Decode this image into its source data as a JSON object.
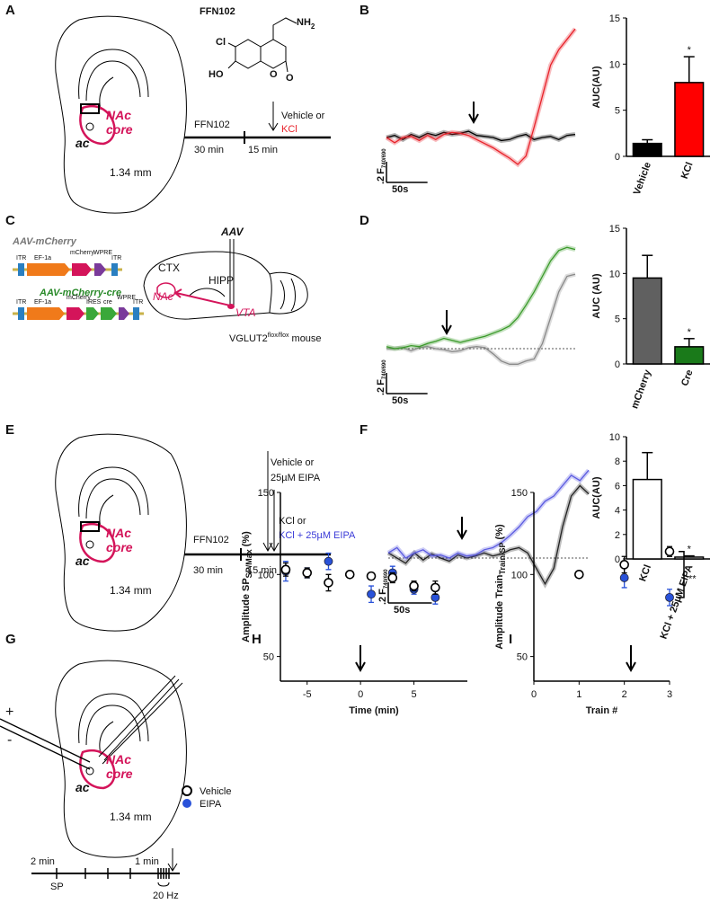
{
  "panel_labels": [
    "A",
    "B",
    "C",
    "D",
    "E",
    "F",
    "G",
    "H",
    "I"
  ],
  "panel_a": {
    "compound": "FFN102",
    "amine": "NH",
    "amine_sub": "2",
    "chlorine": "Cl",
    "hydroxyl": "HO",
    "ring_o": "O",
    "keto_o": "O",
    "region_1": "NAc",
    "region_2": "core",
    "ac": "ac",
    "level": "1.34 mm",
    "drug": "FFN102",
    "t1": "30 min",
    "t2": "15 min",
    "treat": "Vehicle or",
    "kcl": "KCl"
  },
  "panel_c": {
    "vector_1": "AAV-mCherry",
    "v1_parts": [
      "ITR",
      "EF-1a",
      "mCherry",
      "WPRE",
      "ITR"
    ],
    "vector_2": "AAV-mCherry-cre",
    "v2_parts": [
      "ITR",
      "EF-1a",
      "mCherry",
      "IRES",
      "cre",
      "WPRE",
      "ITR"
    ],
    "aav": "AAV",
    "ctx": "CTX",
    "hipp": "HIPP",
    "nac": "NAc",
    "vta": "VTA",
    "mouse": "VGLUT2",
    "mouse_sup": "flox/flox",
    "mouse_end": "mouse"
  },
  "panel_e": {
    "treat_1": "Vehicle or",
    "treat_2": "25µM EIPA",
    "treat_3": "KCl or",
    "treat_4": "KCl + 25µM EIPA",
    "drug": "FFN102",
    "t1": "30 min",
    "t2": "15 min",
    "region_1": "NAc",
    "region_2": "core",
    "ac": "ac",
    "level": "1.34 mm"
  },
  "panel_g": {
    "plus": "+",
    "minus": "-",
    "region_1": "NAc",
    "region_2": "core",
    "ac": "ac",
    "level": "1.34 mm",
    "t1": "2 min",
    "t2": "1 min",
    "sp": "SP",
    "freq": "20 Hz"
  },
  "chart_data": [
    {
      "type": "line",
      "x": [
        0,
        10,
        20,
        30,
        40,
        50,
        60,
        70,
        80,
        90,
        100,
        110,
        120,
        130,
        140,
        150,
        160,
        170,
        180,
        190,
        200,
        210,
        220,
        230
      ],
      "xlim": [
        0,
        230
      ],
      "ylim": [
        -0.4,
        1.2
      ],
      "zero_line": false,
      "scale_x": {
        "value": 50,
        "label": "50s"
      },
      "scale_y": {
        "value": 0.2,
        "label": ".2"
      },
      "scale_unit": "F",
      "scale_unit_sub": "740/690",
      "series": [
        {
          "name": "Vehicle",
          "color": "#000000",
          "values": [
            0,
            0.02,
            -0.02,
            0.03,
            0,
            0.04,
            0.02,
            0.05,
            0.03,
            0.04,
            0.06,
            0.02,
            0.01,
            0,
            -0.03,
            -0.02,
            0.01,
            0.03,
            -0.02,
            0,
            0.01,
            -0.02,
            0.02,
            0.03
          ]
        },
        {
          "name": "KCl",
          "color": "#e8222a",
          "values": [
            0,
            -0.05,
            0,
            0.01,
            -0.03,
            0.02,
            -0.02,
            0.03,
            0.05,
            0.04,
            0.02,
            -0.02,
            -0.06,
            -0.1,
            -0.15,
            -0.2,
            -0.26,
            -0.18,
            0.1,
            0.4,
            0.7,
            0.85,
            0.95,
            1.05
          ]
        }
      ]
    },
    {
      "type": "bar",
      "categories": [
        "Vehicle",
        "KCl"
      ],
      "values": [
        1.4,
        8.0
      ],
      "errors": [
        0.4,
        2.8
      ],
      "colors": [
        "#000000",
        "#ff0000"
      ],
      "edgecolor": "#000000",
      "ylim": [
        0,
        15
      ],
      "yticks": [
        0,
        5,
        10,
        15
      ],
      "ylabel": "AUC(AU)",
      "significance": "*"
    },
    {
      "type": "line",
      "x": [
        0,
        10,
        20,
        30,
        40,
        50,
        60,
        70,
        80,
        90,
        100,
        110,
        120,
        130,
        140,
        150,
        160,
        170,
        180,
        190,
        200,
        210,
        220,
        230
      ],
      "xlim": [
        0,
        230
      ],
      "ylim": [
        -0.4,
        1.2
      ],
      "zero_line": true,
      "scale_x": {
        "value": 50,
        "label": "50s"
      },
      "scale_y": {
        "value": 0.2,
        "label": ".2"
      },
      "scale_unit": "F",
      "scale_unit_sub": "740/690",
      "series": [
        {
          "name": "mCherry",
          "color": "#8a8a8a",
          "values": [
            0,
            0,
            0.01,
            -0.02,
            0.01,
            0.02,
            0,
            -0.01,
            -0.03,
            -0.02,
            0.01,
            0.02,
            0.01,
            -0.05,
            -0.12,
            -0.15,
            -0.15,
            -0.12,
            -0.1,
            0.05,
            0.3,
            0.55,
            0.7,
            0.72
          ]
        },
        {
          "name": "Cre",
          "color": "#3a9a2a",
          "values": [
            0.02,
            0,
            0.01,
            0.03,
            0.02,
            0.05,
            0.07,
            0.1,
            0.08,
            0.06,
            0.08,
            0.1,
            0.12,
            0.15,
            0.18,
            0.22,
            0.3,
            0.42,
            0.55,
            0.7,
            0.85,
            0.95,
            0.98,
            0.96
          ]
        }
      ]
    },
    {
      "type": "bar",
      "categories": [
        "mCherry",
        "Cre"
      ],
      "values": [
        9.5,
        1.9
      ],
      "errors": [
        2.5,
        0.9
      ],
      "colors": [
        "#606060",
        "#1a7a1a"
      ],
      "edgecolor": "#000000",
      "ylim": [
        0,
        15
      ],
      "yticks": [
        0,
        5,
        10,
        15
      ],
      "ylabel": "AUC (AU)",
      "significance": "*"
    },
    {
      "type": "line",
      "x": [
        0,
        10,
        20,
        30,
        40,
        50,
        60,
        70,
        80,
        90,
        100,
        110,
        120,
        130,
        140,
        150,
        160,
        170,
        180,
        190,
        200,
        210,
        220,
        230
      ],
      "xlim": [
        0,
        230
      ],
      "ylim": [
        -0.4,
        1.4
      ],
      "zero_line": true,
      "scale_x": {
        "value": 50,
        "label": "50s"
      },
      "scale_y": {
        "value": 0.2,
        "label": ".2"
      },
      "scale_unit": "F",
      "scale_unit_sub": "740/690",
      "series": [
        {
          "name": "KCl",
          "color": "#222222",
          "values": [
            0.05,
            0,
            -0.05,
            0.05,
            -0.02,
            0.04,
            0,
            -0.03,
            0.03,
            0,
            0.02,
            0.05,
            0.02,
            0.04,
            0.08,
            0.1,
            0.05,
            -0.1,
            -0.25,
            -0.1,
            0.3,
            0.6,
            0.7,
            0.62
          ]
        },
        {
          "name": "KCl + 25µM EIPA",
          "color": "#5a5ae0",
          "values": [
            0.05,
            0.1,
            0,
            0.05,
            0.08,
            0.02,
            0.03,
            0,
            0.05,
            0.02,
            0.03,
            0.08,
            0.1,
            0.15,
            0.22,
            0.3,
            0.4,
            0.45,
            0.55,
            0.6,
            0.7,
            0.8,
            0.75,
            0.85
          ]
        }
      ]
    },
    {
      "type": "bar",
      "categories": [
        "KCl",
        "KCl + 25µM EIPA"
      ],
      "values": [
        6.5,
        0.15
      ],
      "errors": [
        2.2,
        0.1
      ],
      "colors": [
        "#ffffff",
        "#ffffff"
      ],
      "edgecolor": "#000000",
      "ylim": [
        0,
        10
      ],
      "yticks": [
        0,
        2,
        4,
        6,
        8,
        10
      ],
      "ylabel": "AUC(AU)",
      "significance": "*"
    },
    {
      "type": "scatter",
      "x": [
        -7,
        -5,
        -3,
        -1,
        1,
        3,
        5,
        7
      ],
      "xlim": [
        -7.5,
        10
      ],
      "xticks": [
        -5,
        0,
        5
      ],
      "ylim": [
        35,
        150
      ],
      "yticks": [
        50,
        100,
        150
      ],
      "xlabel": "Time (min)",
      "ylabel": "Amplitude SP",
      "ylabel_sub": "SP/Max",
      "ylabel_end": "(%)",
      "series": [
        {
          "name": "Vehicle",
          "color": "#000000",
          "marker": "open",
          "values": [
            103,
            101,
            95,
            100,
            99,
            98,
            93,
            92
          ],
          "errors": [
            4,
            3,
            5,
            0,
            2,
            3,
            3,
            4
          ]
        },
        {
          "name": "EIPA",
          "color": "#2952d9",
          "marker": "filled",
          "values": [
            102,
            101,
            108,
            100,
            88,
            101,
            91,
            86
          ],
          "errors": [
            6,
            3,
            5,
            0,
            5,
            4,
            3,
            4
          ]
        }
      ]
    },
    {
      "type": "scatter",
      "x": [
        1,
        2,
        3
      ],
      "xlim": [
        0,
        3
      ],
      "xticks": [
        0,
        1,
        2,
        3
      ],
      "ylim": [
        35,
        150
      ],
      "yticks": [
        50,
        100,
        150
      ],
      "xlabel": "Train #",
      "ylabel": "Amplitude Train",
      "ylabel_sub": "Train/SP",
      "ylabel_end": "(%)",
      "significance": "**",
      "series": [
        {
          "name": "Vehicle",
          "color": "#000000",
          "marker": "open",
          "values": [
            100,
            106,
            114
          ],
          "errors": [
            0,
            5,
            3
          ]
        },
        {
          "name": "EIPA",
          "color": "#2952d9",
          "marker": "filled",
          "values": [
            100,
            98,
            86
          ],
          "errors": [
            0,
            6,
            5
          ]
        }
      ]
    }
  ]
}
